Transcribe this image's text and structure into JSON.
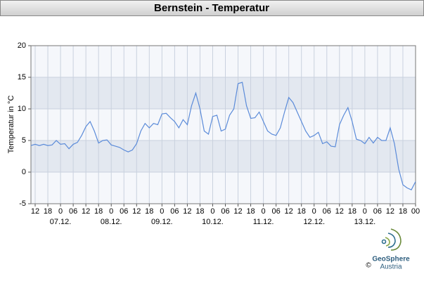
{
  "chart_data": {
    "type": "line",
    "title": "Bernstein - Temperatur",
    "ylabel": "Temperatur in °C",
    "x": [
      10,
      12,
      14,
      16,
      18,
      20,
      22,
      24,
      26,
      28,
      30,
      32,
      34,
      36,
      38,
      40,
      42,
      44,
      46,
      48,
      50,
      52,
      54,
      56,
      58,
      60,
      62,
      64,
      66,
      68,
      70,
      72,
      74,
      76,
      78,
      80,
      82,
      84,
      86,
      88,
      90,
      92,
      94,
      96,
      98,
      100,
      102,
      104,
      106,
      108,
      110,
      112,
      114,
      116,
      118,
      120,
      122,
      124,
      126,
      128,
      130,
      132,
      134,
      136,
      138,
      140,
      142,
      144,
      146,
      148,
      150,
      152,
      154,
      156,
      158,
      160,
      162,
      164,
      166,
      168,
      170,
      172,
      174,
      176,
      178,
      180,
      182,
      184,
      186,
      188,
      190,
      192
    ],
    "series": [
      {
        "color": "#5b8bd9",
        "values": [
          4.2,
          4.4,
          4.2,
          4.4,
          4.2,
          4.3,
          5.0,
          4.4,
          4.5,
          3.7,
          4.4,
          4.7,
          5.8,
          7.2,
          8.0,
          6.5,
          4.6,
          5.0,
          5.1,
          4.3,
          4.1,
          3.9,
          3.5,
          3.2,
          3.5,
          4.5,
          6.5,
          7.7,
          7.0,
          7.7,
          7.5,
          9.2,
          9.3,
          8.6,
          8.0,
          7.0,
          8.3,
          7.5,
          10.5,
          12.5,
          10.0,
          6.5,
          6.0,
          8.8,
          9.0,
          6.5,
          6.8,
          9.0,
          10.0,
          14.0,
          14.2,
          10.5,
          8.5,
          8.6,
          9.5,
          8.0,
          6.5,
          6.0,
          5.8,
          7.0,
          9.5,
          11.8,
          11.0,
          9.5,
          8.0,
          6.5,
          5.5,
          5.8,
          6.3,
          4.5,
          4.8,
          4.1,
          4.0,
          7.5,
          9.0,
          10.2,
          8.0,
          5.2,
          5.0,
          4.5,
          5.5,
          4.6,
          5.5,
          5.0,
          5.0,
          7.0,
          4.5,
          0.5,
          -2.0,
          -2.5,
          -2.8,
          -1.5
        ]
      }
    ],
    "xlim": [
      10,
      192
    ],
    "xticks": [
      12,
      18,
      {
        "value": 24,
        "label": "0"
      },
      {
        "value": 30,
        "label": "06"
      },
      {
        "value": 36,
        "label": "12"
      },
      {
        "value": 42,
        "label": "18"
      },
      {
        "value": 48,
        "label": "0"
      },
      {
        "value": 54,
        "label": "06"
      },
      {
        "value": 60,
        "label": "12"
      },
      {
        "value": 66,
        "label": "18"
      },
      {
        "value": 72,
        "label": "0"
      },
      {
        "value": 78,
        "label": "06"
      },
      {
        "value": 84,
        "label": "12"
      },
      {
        "value": 90,
        "label": "18"
      },
      {
        "value": 96,
        "label": "0"
      },
      {
        "value": 102,
        "label": "06"
      },
      {
        "value": 108,
        "label": "12"
      },
      {
        "value": 114,
        "label": "18"
      },
      {
        "value": 120,
        "label": "0"
      },
      {
        "value": 126,
        "label": "06"
      },
      {
        "value": 132,
        "label": "12"
      },
      {
        "value": 138,
        "label": "18"
      },
      {
        "value": 144,
        "label": "0"
      },
      {
        "value": 150,
        "label": "06"
      },
      {
        "value": 156,
        "label": "12"
      },
      {
        "value": 162,
        "label": "18"
      },
      {
        "value": 168,
        "label": "0"
      },
      {
        "value": 174,
        "label": "06"
      },
      {
        "value": 180,
        "label": "12"
      },
      {
        "value": 186,
        "label": "18"
      },
      {
        "value": 192,
        "label": "00"
      }
    ],
    "xdate_ticks": [
      {
        "value": 24,
        "label": "07.12."
      },
      {
        "value": 48,
        "label": "08.12."
      },
      {
        "value": 72,
        "label": "09.12."
      },
      {
        "value": 96,
        "label": "10.12."
      },
      {
        "value": 120,
        "label": "11.12."
      },
      {
        "value": 144,
        "label": "12.12."
      },
      {
        "value": 168,
        "label": "13.12."
      }
    ],
    "ylim": [
      -5,
      20
    ],
    "yticks": [
      20,
      15,
      10,
      5,
      0,
      -5
    ],
    "grid": true
  },
  "logo": {
    "name": "GeoSphere",
    "sub": "Austria",
    "copyright": "©"
  }
}
